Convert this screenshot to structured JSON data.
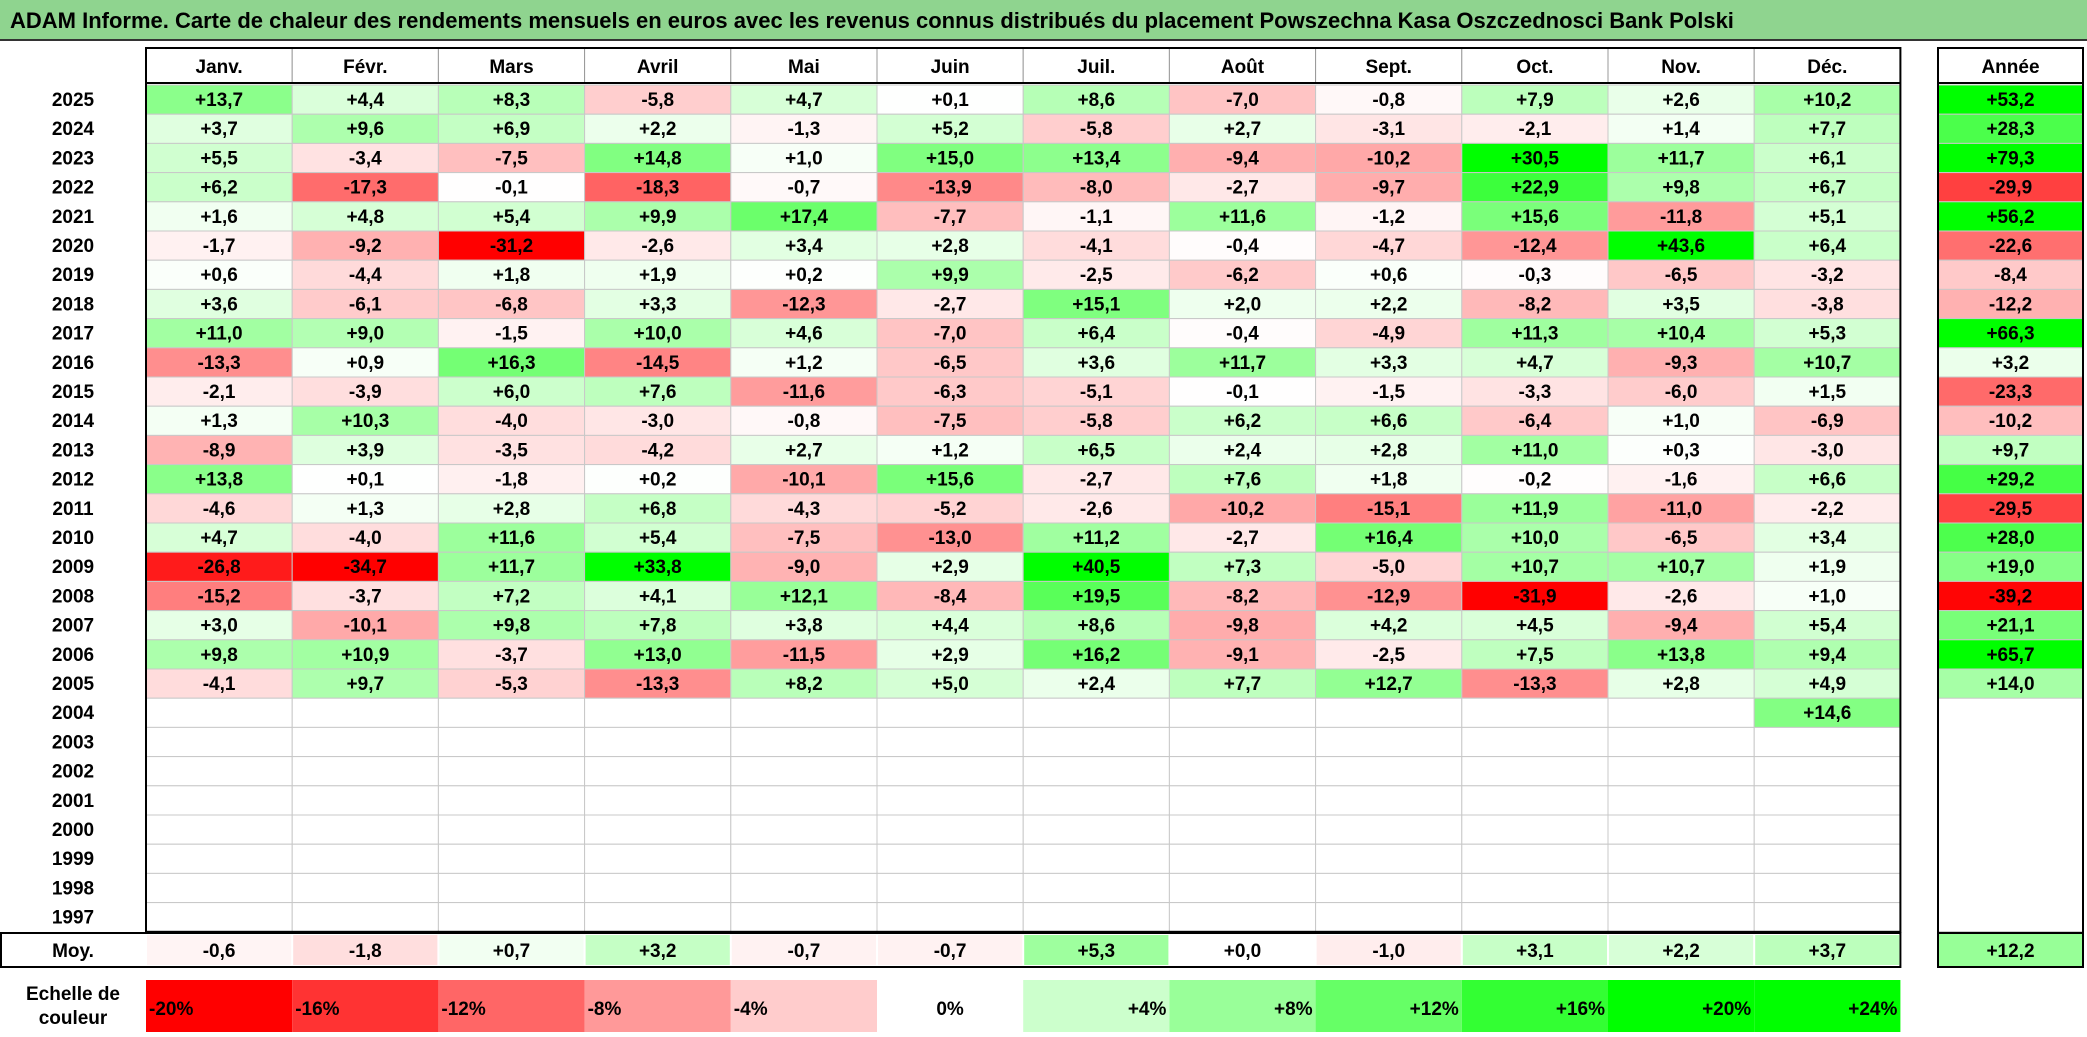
{
  "title": "ADAM Informe. Carte de chaleur des rendements mensuels en euros avec les revenus connus distribués du placement Powszechna Kasa Oszczednosci Bank Polski",
  "colors": {
    "negative_max": "#ff0000",
    "neutral": "#ffffff",
    "positive_max": "#00ff00",
    "title_bg": "#8fd48f"
  },
  "chart_data": {
    "type": "heatmap",
    "title": "ADAM Informe. Carte de chaleur des rendements mensuels en euros avec les revenus connus distribués du placement Powszechna Kasa Oszczednosci Bank Polski",
    "columns": [
      "Janv.",
      "Févr.",
      "Mars",
      "Avril",
      "Mai",
      "Juin",
      "Juil.",
      "Août",
      "Sept.",
      "Oct.",
      "Nov.",
      "Déc."
    ],
    "year_column_label": "Année",
    "rows": [
      {
        "year": "2025",
        "values": [
          "+13,7",
          "+4,4",
          "+8,3",
          "-5,8",
          "+4,7",
          "+0,1",
          "+8,6",
          "-7,0",
          "-0,8",
          "+7,9",
          "+2,6",
          "+10,2"
        ],
        "annual": "+53,2"
      },
      {
        "year": "2024",
        "values": [
          "+3,7",
          "+9,6",
          "+6,9",
          "+2,2",
          "-1,3",
          "+5,2",
          "-5,8",
          "+2,7",
          "-3,1",
          "-2,1",
          "+1,4",
          "+7,7"
        ],
        "annual": "+28,3"
      },
      {
        "year": "2023",
        "values": [
          "+5,5",
          "-3,4",
          "-7,5",
          "+14,8",
          "+1,0",
          "+15,0",
          "+13,4",
          "-9,4",
          "-10,2",
          "+30,5",
          "+11,7",
          "+6,1"
        ],
        "annual": "+79,3"
      },
      {
        "year": "2022",
        "values": [
          "+6,2",
          "-17,3",
          "-0,1",
          "-18,3",
          "-0,7",
          "-13,9",
          "-8,0",
          "-2,7",
          "-9,7",
          "+22,9",
          "+9,8",
          "+6,7"
        ],
        "annual": "-29,9"
      },
      {
        "year": "2021",
        "values": [
          "+1,6",
          "+4,8",
          "+5,4",
          "+9,9",
          "+17,4",
          "-7,7",
          "-1,1",
          "+11,6",
          "-1,2",
          "+15,6",
          "-11,8",
          "+5,1"
        ],
        "annual": "+56,2"
      },
      {
        "year": "2020",
        "values": [
          "-1,7",
          "-9,2",
          "-31,2",
          "-2,6",
          "+3,4",
          "+2,8",
          "-4,1",
          "-0,4",
          "-4,7",
          "-12,4",
          "+43,6",
          "+6,4"
        ],
        "annual": "-22,6"
      },
      {
        "year": "2019",
        "values": [
          "+0,6",
          "-4,4",
          "+1,8",
          "+1,9",
          "+0,2",
          "+9,9",
          "-2,5",
          "-6,2",
          "+0,6",
          "-0,3",
          "-6,5",
          "-3,2"
        ],
        "annual": "-8,4"
      },
      {
        "year": "2018",
        "values": [
          "+3,6",
          "-6,1",
          "-6,8",
          "+3,3",
          "-12,3",
          "-2,7",
          "+15,1",
          "+2,0",
          "+2,2",
          "-8,2",
          "+3,5",
          "-3,8"
        ],
        "annual": "-12,2"
      },
      {
        "year": "2017",
        "values": [
          "+11,0",
          "+9,0",
          "-1,5",
          "+10,0",
          "+4,6",
          "-7,0",
          "+6,4",
          "-0,4",
          "-4,9",
          "+11,3",
          "+10,4",
          "+5,3"
        ],
        "annual": "+66,3"
      },
      {
        "year": "2016",
        "values": [
          "-13,3",
          "+0,9",
          "+16,3",
          "-14,5",
          "+1,2",
          "-6,5",
          "+3,6",
          "+11,7",
          "+3,3",
          "+4,7",
          "-9,3",
          "+10,7"
        ],
        "annual": "+3,2"
      },
      {
        "year": "2015",
        "values": [
          "-2,1",
          "-3,9",
          "+6,0",
          "+7,6",
          "-11,6",
          "-6,3",
          "-5,1",
          "-0,1",
          "-1,5",
          "-3,3",
          "-6,0",
          "+1,5"
        ],
        "annual": "-23,3"
      },
      {
        "year": "2014",
        "values": [
          "+1,3",
          "+10,3",
          "-4,0",
          "-3,0",
          "-0,8",
          "-7,5",
          "-5,8",
          "+6,2",
          "+6,6",
          "-6,4",
          "+1,0",
          "-6,9"
        ],
        "annual": "-10,2"
      },
      {
        "year": "2013",
        "values": [
          "-8,9",
          "+3,9",
          "-3,5",
          "-4,2",
          "+2,7",
          "+1,2",
          "+6,5",
          "+2,4",
          "+2,8",
          "+11,0",
          "+0,3",
          "-3,0"
        ],
        "annual": "+9,7"
      },
      {
        "year": "2012",
        "values": [
          "+13,8",
          "+0,1",
          "-1,8",
          "+0,2",
          "-10,1",
          "+15,6",
          "-2,7",
          "+7,6",
          "+1,8",
          "-0,2",
          "-1,6",
          "+6,6"
        ],
        "annual": "+29,2"
      },
      {
        "year": "2011",
        "values": [
          "-4,6",
          "+1,3",
          "+2,8",
          "+6,8",
          "-4,3",
          "-5,2",
          "-2,6",
          "-10,2",
          "-15,1",
          "+11,9",
          "-11,0",
          "-2,2"
        ],
        "annual": "-29,5"
      },
      {
        "year": "2010",
        "values": [
          "+4,7",
          "-4,0",
          "+11,6",
          "+5,4",
          "-7,5",
          "-13,0",
          "+11,2",
          "-2,7",
          "+16,4",
          "+10,0",
          "-6,5",
          "+3,4"
        ],
        "annual": "+28,0"
      },
      {
        "year": "2009",
        "values": [
          "-26,8",
          "-34,7",
          "+11,7",
          "+33,8",
          "-9,0",
          "+2,9",
          "+40,5",
          "+7,3",
          "-5,0",
          "+10,7",
          "+10,7",
          "+1,9"
        ],
        "annual": "+19,0"
      },
      {
        "year": "2008",
        "values": [
          "-15,2",
          "-3,7",
          "+7,2",
          "+4,1",
          "+12,1",
          "-8,4",
          "+19,5",
          "-8,2",
          "-12,9",
          "-31,9",
          "-2,6",
          "+1,0"
        ],
        "annual": "-39,2"
      },
      {
        "year": "2007",
        "values": [
          "+3,0",
          "-10,1",
          "+9,8",
          "+7,8",
          "+3,8",
          "+4,4",
          "+8,6",
          "-9,8",
          "+4,2",
          "+4,5",
          "-9,4",
          "+5,4"
        ],
        "annual": "+21,1"
      },
      {
        "year": "2006",
        "values": [
          "+9,8",
          "+10,9",
          "-3,7",
          "+13,0",
          "-11,5",
          "+2,9",
          "+16,2",
          "-9,1",
          "-2,5",
          "+7,5",
          "+13,8",
          "+9,4"
        ],
        "annual": "+65,7"
      },
      {
        "year": "2005",
        "values": [
          "-4,1",
          "+9,7",
          "-5,3",
          "-13,3",
          "+8,2",
          "+5,0",
          "+2,4",
          "+7,7",
          "+12,7",
          "-13,3",
          "+2,8",
          "+4,9"
        ],
        "annual": "+14,0"
      },
      {
        "year": "2004",
        "values": [
          "",
          "",
          "",
          "",
          "",
          "",
          "",
          "",
          "",
          "",
          "",
          "+14,6"
        ],
        "annual": ""
      },
      {
        "year": "2003",
        "values": [
          "",
          "",
          "",
          "",
          "",
          "",
          "",
          "",
          "",
          "",
          "",
          ""
        ],
        "annual": ""
      },
      {
        "year": "2002",
        "values": [
          "",
          "",
          "",
          "",
          "",
          "",
          "",
          "",
          "",
          "",
          "",
          ""
        ],
        "annual": ""
      },
      {
        "year": "2001",
        "values": [
          "",
          "",
          "",
          "",
          "",
          "",
          "",
          "",
          "",
          "",
          "",
          ""
        ],
        "annual": ""
      },
      {
        "year": "2000",
        "values": [
          "",
          "",
          "",
          "",
          "",
          "",
          "",
          "",
          "",
          "",
          "",
          ""
        ],
        "annual": ""
      },
      {
        "year": "1999",
        "values": [
          "",
          "",
          "",
          "",
          "",
          "",
          "",
          "",
          "",
          "",
          "",
          ""
        ],
        "annual": ""
      },
      {
        "year": "1998",
        "values": [
          "",
          "",
          "",
          "",
          "",
          "",
          "",
          "",
          "",
          "",
          "",
          ""
        ],
        "annual": ""
      },
      {
        "year": "1997",
        "values": [
          "",
          "",
          "",
          "",
          "",
          "",
          "",
          "",
          "",
          "",
          "",
          ""
        ],
        "annual": ""
      }
    ],
    "average": {
      "label": "Moy.",
      "values": [
        "-0,6",
        "-1,8",
        "+0,7",
        "+3,2",
        "-0,7",
        "-0,7",
        "+5,3",
        "+0,0",
        "-1,0",
        "+3,1",
        "+2,2",
        "+3,7"
      ],
      "annual": "+12,2"
    },
    "color_scale": {
      "label_line1": "Echelle de",
      "label_line2": "couleur",
      "stops": [
        "-20%",
        "-16%",
        "-12%",
        "-8%",
        "-4%",
        "0%",
        "+4%",
        "+8%",
        "+12%",
        "+16%",
        "+20%",
        "+24%"
      ]
    }
  }
}
